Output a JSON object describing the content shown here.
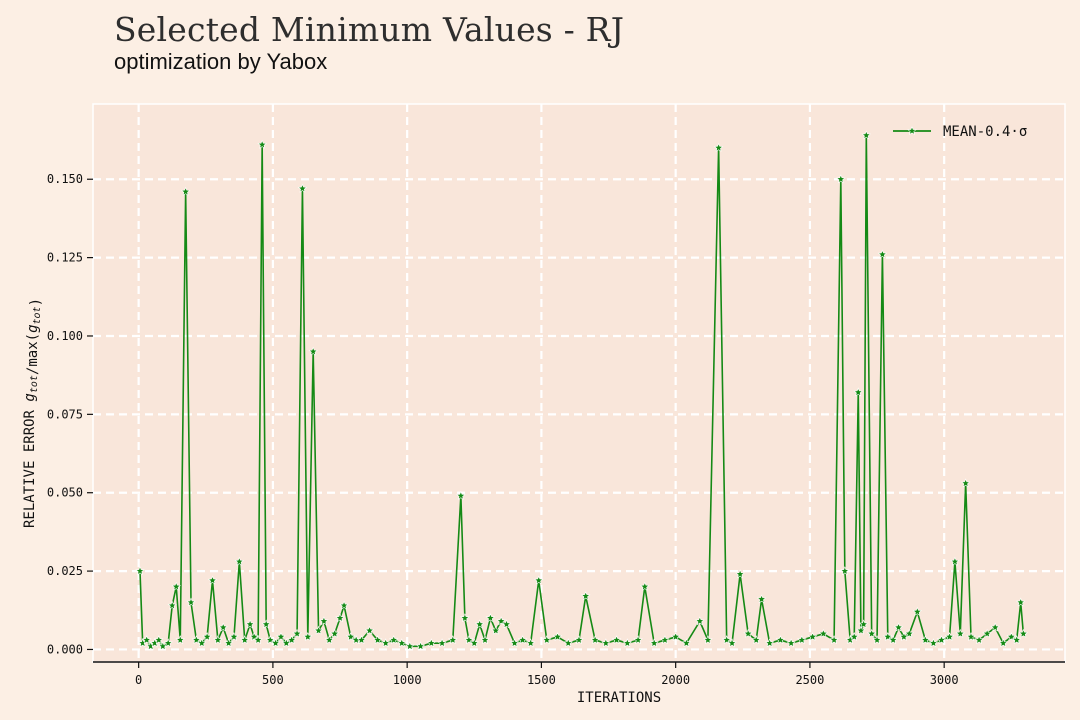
{
  "header": {
    "title": "Selected Minimum Values - RJ",
    "subtitle": "optimization by Yabox"
  },
  "colors": {
    "background": "#fcefe4",
    "plot_area": "#f9e6da",
    "grid": "#ffffff",
    "series": "#158a15",
    "marker_fill": "#158a15",
    "marker_edge": "#ffffff",
    "axis": "#111111"
  },
  "chart_data": {
    "type": "line",
    "title": "Selected Minimum Values - RJ",
    "subtitle": "optimization by Yabox",
    "xlabel": "ITERATIONS",
    "ylabel": "RELATIVE ERROR g_tot/max(g_tot)",
    "xlim": [
      -170,
      3450
    ],
    "ylim": [
      -0.004,
      0.174
    ],
    "xticks": [
      0,
      500,
      1000,
      1500,
      2000,
      2500,
      3000
    ],
    "xtick_labels": [
      "0",
      "500",
      "1000",
      "1500",
      "2000",
      "2500",
      "3000"
    ],
    "yticks": [
      0.0,
      0.025,
      0.05,
      0.075,
      0.1,
      0.125,
      0.15
    ],
    "ytick_labels": [
      "0.000",
      "0.025",
      "0.050",
      "0.075",
      "0.100",
      "0.125",
      "0.150"
    ],
    "grid": true,
    "legend_position": "top-right",
    "series": [
      {
        "name": "MEAN-0.4·σ",
        "marker": "star",
        "x": [
          5,
          15,
          30,
          45,
          60,
          75,
          90,
          110,
          125,
          140,
          155,
          175,
          195,
          215,
          235,
          255,
          275,
          295,
          315,
          335,
          355,
          375,
          395,
          415,
          430,
          445,
          460,
          475,
          490,
          510,
          530,
          550,
          570,
          590,
          610,
          630,
          650,
          670,
          690,
          710,
          730,
          750,
          765,
          790,
          810,
          830,
          860,
          890,
          920,
          950,
          980,
          1010,
          1050,
          1090,
          1130,
          1170,
          1200,
          1215,
          1230,
          1250,
          1270,
          1290,
          1310,
          1330,
          1350,
          1370,
          1400,
          1430,
          1460,
          1490,
          1520,
          1560,
          1600,
          1640,
          1665,
          1700,
          1740,
          1780,
          1820,
          1860,
          1885,
          1920,
          1960,
          2000,
          2040,
          2090,
          2120,
          2160,
          2190,
          2210,
          2240,
          2270,
          2300,
          2320,
          2350,
          2390,
          2430,
          2470,
          2510,
          2550,
          2590,
          2615,
          2630,
          2650,
          2665,
          2680,
          2690,
          2700,
          2710,
          2730,
          2750,
          2770,
          2790,
          2810,
          2830,
          2850,
          2870,
          2900,
          2930,
          2960,
          2990,
          3020,
          3040,
          3060,
          3080,
          3100,
          3130,
          3160,
          3190,
          3220,
          3250,
          3270,
          3285,
          3295
        ],
        "y": [
          0.025,
          0.002,
          0.003,
          0.001,
          0.002,
          0.003,
          0.001,
          0.002,
          0.014,
          0.02,
          0.003,
          0.146,
          0.015,
          0.003,
          0.002,
          0.004,
          0.022,
          0.003,
          0.007,
          0.002,
          0.004,
          0.028,
          0.003,
          0.008,
          0.004,
          0.003,
          0.161,
          0.008,
          0.003,
          0.002,
          0.004,
          0.002,
          0.003,
          0.005,
          0.147,
          0.004,
          0.095,
          0.006,
          0.009,
          0.003,
          0.005,
          0.01,
          0.014,
          0.004,
          0.003,
          0.003,
          0.006,
          0.003,
          0.002,
          0.003,
          0.002,
          0.001,
          0.001,
          0.002,
          0.002,
          0.003,
          0.049,
          0.01,
          0.003,
          0.002,
          0.008,
          0.003,
          0.01,
          0.006,
          0.009,
          0.008,
          0.002,
          0.003,
          0.002,
          0.022,
          0.003,
          0.004,
          0.002,
          0.003,
          0.017,
          0.003,
          0.002,
          0.003,
          0.002,
          0.003,
          0.02,
          0.002,
          0.003,
          0.004,
          0.002,
          0.009,
          0.003,
          0.16,
          0.003,
          0.002,
          0.024,
          0.005,
          0.003,
          0.016,
          0.002,
          0.003,
          0.002,
          0.003,
          0.004,
          0.005,
          0.003,
          0.15,
          0.025,
          0.003,
          0.004,
          0.082,
          0.006,
          0.008,
          0.164,
          0.005,
          0.003,
          0.126,
          0.004,
          0.003,
          0.007,
          0.004,
          0.005,
          0.012,
          0.003,
          0.002,
          0.003,
          0.004,
          0.028,
          0.005,
          0.053,
          0.004,
          0.003,
          0.005,
          0.007,
          0.002,
          0.004,
          0.003,
          0.015,
          0.005
        ]
      }
    ]
  }
}
